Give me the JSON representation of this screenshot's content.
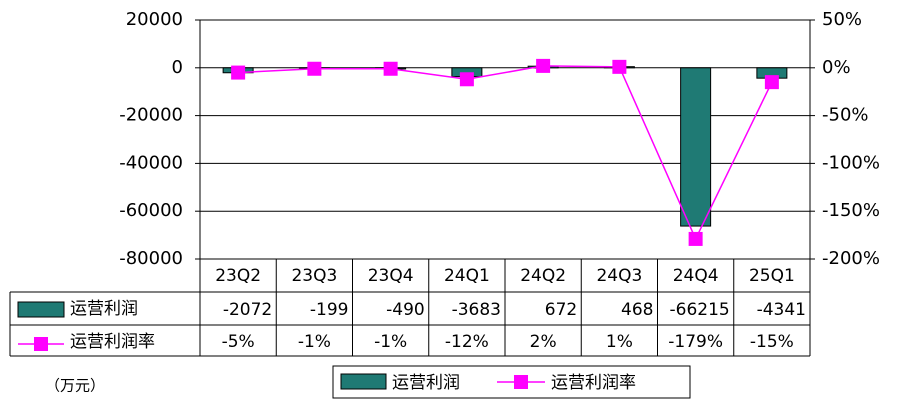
{
  "chart_data": {
    "type": "bar",
    "unit_note": "（万元）",
    "categories": [
      "23Q2",
      "23Q3",
      "23Q4",
      "24Q1",
      "24Q2",
      "24Q3",
      "24Q4",
      "25Q1"
    ],
    "series": [
      {
        "name": "运营利润",
        "color": "#1f7a74",
        "values": [
          -2072,
          -199,
          -490,
          -3683,
          672,
          468,
          -66215,
          -4341
        ]
      },
      {
        "name": "运营利润率",
        "type": "line",
        "axis": "y2",
        "color": "#ff00ff",
        "values": [
          -5,
          -1,
          -1,
          -12,
          2,
          1,
          -179,
          -15
        ],
        "value_labels": [
          "-5%",
          "-1%",
          "-1%",
          "-12%",
          "2%",
          "1%",
          "-179%",
          "-15%"
        ]
      }
    ],
    "ylim": [
      -80000,
      20000
    ],
    "yticks": [
      20000,
      0,
      -20000,
      -40000,
      -60000,
      -80000
    ],
    "y2lim": [
      -200,
      50
    ],
    "y2ticks": [
      {
        "value": 50,
        "label": "50%"
      },
      {
        "value": 0,
        "label": "0%"
      },
      {
        "value": -50,
        "label": "-50%"
      },
      {
        "value": -100,
        "label": "-100%"
      },
      {
        "value": -150,
        "label": "-150%"
      },
      {
        "value": -200,
        "label": "-200%"
      }
    ],
    "grid": true
  }
}
